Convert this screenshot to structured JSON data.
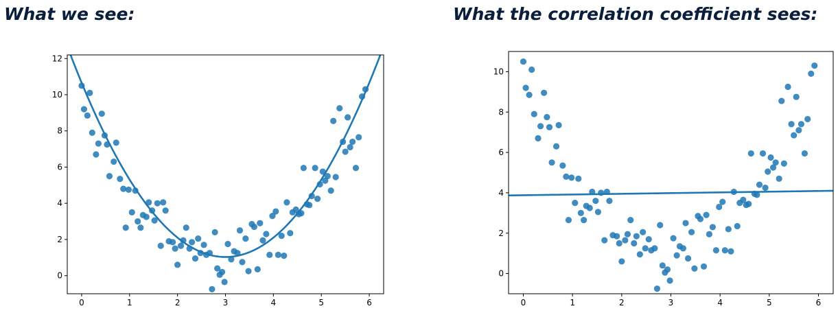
{
  "headings": {
    "left": "What we see:",
    "right": "What the correlation coefficient sees:"
  },
  "colors": {
    "series": "#1f77b4",
    "heading": "#0b1f3a"
  },
  "chart_data": [
    {
      "type": "scatter",
      "title": "",
      "xlabel": "",
      "ylabel": "",
      "xlim": [
        -0.3,
        6.3
      ],
      "ylim": [
        -1.0,
        12.2
      ],
      "xticks": [
        0,
        1,
        2,
        3,
        4,
        5,
        6
      ],
      "yticks": [
        0,
        2,
        4,
        6,
        8,
        10,
        12
      ],
      "grid": false,
      "fit": {
        "type": "quadratic",
        "coefficients": [
          1.07,
          0,
          1.03
        ],
        "vertex_x": 3.0
      },
      "points": [
        [
          0,
          10.5
        ],
        [
          0.05,
          9.2
        ],
        [
          0.12,
          8.85
        ],
        [
          0.17,
          10.1
        ],
        [
          0.22,
          7.9
        ],
        [
          0.3,
          6.7
        ],
        [
          0.35,
          7.3
        ],
        [
          0.42,
          8.95
        ],
        [
          0.48,
          7.75
        ],
        [
          0.53,
          7.25
        ],
        [
          0.58,
          5.5
        ],
        [
          0.67,
          6.3
        ],
        [
          0.72,
          7.35
        ],
        [
          0.8,
          5.35
        ],
        [
          0.87,
          4.8
        ],
        [
          0.92,
          2.65
        ],
        [
          0.98,
          4.75
        ],
        [
          1.05,
          3.5
        ],
        [
          1.12,
          4.7
        ],
        [
          1.17,
          3.0
        ],
        [
          1.23,
          2.65
        ],
        [
          1.28,
          3.35
        ],
        [
          1.35,
          3.25
        ],
        [
          1.4,
          4.05
        ],
        [
          1.47,
          3.6
        ],
        [
          1.52,
          3.05
        ],
        [
          1.58,
          4.0
        ],
        [
          1.65,
          1.65
        ],
        [
          1.7,
          4.05
        ],
        [
          1.75,
          3.6
        ],
        [
          1.82,
          1.9
        ],
        [
          1.9,
          1.85
        ],
        [
          1.95,
          1.5
        ],
        [
          2.0,
          0.6
        ],
        [
          2.07,
          1.65
        ],
        [
          2.12,
          1.95
        ],
        [
          2.18,
          2.65
        ],
        [
          2.25,
          1.5
        ],
        [
          2.3,
          1.85
        ],
        [
          2.37,
          0.95
        ],
        [
          2.43,
          2.05
        ],
        [
          2.48,
          1.25
        ],
        [
          2.55,
          1.7
        ],
        [
          2.6,
          1.15
        ],
        [
          2.67,
          1.25
        ],
        [
          2.72,
          -0.75
        ],
        [
          2.78,
          2.4
        ],
        [
          2.83,
          0.4
        ],
        [
          2.88,
          0.05
        ],
        [
          2.93,
          0.2
        ],
        [
          2.98,
          -0.35
        ],
        [
          3.05,
          1.75
        ],
        [
          3.12,
          0.9
        ],
        [
          3.18,
          1.35
        ],
        [
          3.25,
          1.25
        ],
        [
          3.3,
          2.5
        ],
        [
          3.35,
          0.75
        ],
        [
          3.42,
          2.05
        ],
        [
          3.48,
          0.25
        ],
        [
          3.55,
          2.85
        ],
        [
          3.6,
          2.7
        ],
        [
          3.67,
          0.35
        ],
        [
          3.72,
          2.9
        ],
        [
          3.78,
          1.95
        ],
        [
          3.85,
          2.3
        ],
        [
          3.92,
          1.15
        ],
        [
          3.98,
          3.3
        ],
        [
          4.05,
          3.55
        ],
        [
          4.1,
          1.15
        ],
        [
          4.17,
          2.2
        ],
        [
          4.22,
          1.1
        ],
        [
          4.28,
          4.05
        ],
        [
          4.35,
          2.35
        ],
        [
          4.4,
          3.5
        ],
        [
          4.47,
          3.65
        ],
        [
          4.53,
          3.4
        ],
        [
          4.58,
          3.45
        ],
        [
          4.63,
          5.95
        ],
        [
          4.7,
          3.95
        ],
        [
          4.75,
          3.9
        ],
        [
          4.8,
          4.4
        ],
        [
          4.87,
          5.95
        ],
        [
          4.92,
          4.25
        ],
        [
          4.97,
          5.05
        ],
        [
          5.03,
          5.75
        ],
        [
          5.08,
          5.25
        ],
        [
          5.13,
          5.5
        ],
        [
          5.2,
          4.7
        ],
        [
          5.25,
          8.55
        ],
        [
          5.3,
          5.45
        ],
        [
          5.38,
          9.25
        ],
        [
          5.45,
          7.4
        ],
        [
          5.5,
          6.85
        ],
        [
          5.55,
          8.75
        ],
        [
          5.6,
          7.1
        ],
        [
          5.65,
          7.4
        ],
        [
          5.72,
          5.95
        ],
        [
          5.78,
          7.65
        ],
        [
          5.85,
          9.9
        ],
        [
          5.92,
          10.3
        ]
      ]
    },
    {
      "type": "scatter",
      "title": "",
      "xlabel": "",
      "ylabel": "",
      "xlim": [
        -0.3,
        6.3
      ],
      "ylim": [
        -1.0,
        11.0
      ],
      "xticks": [
        0,
        1,
        2,
        3,
        4,
        5,
        6
      ],
      "yticks": [
        0,
        2,
        4,
        6,
        8,
        10
      ],
      "grid": false,
      "fit": {
        "type": "linear",
        "intercept": 3.88,
        "slope": 0.035
      },
      "points": [
        [
          0,
          10.5
        ],
        [
          0.05,
          9.2
        ],
        [
          0.12,
          8.85
        ],
        [
          0.17,
          10.1
        ],
        [
          0.22,
          7.9
        ],
        [
          0.3,
          6.7
        ],
        [
          0.35,
          7.3
        ],
        [
          0.42,
          8.95
        ],
        [
          0.48,
          7.75
        ],
        [
          0.53,
          7.25
        ],
        [
          0.58,
          5.5
        ],
        [
          0.67,
          6.3
        ],
        [
          0.72,
          7.35
        ],
        [
          0.8,
          5.35
        ],
        [
          0.87,
          4.8
        ],
        [
          0.92,
          2.65
        ],
        [
          0.98,
          4.75
        ],
        [
          1.05,
          3.5
        ],
        [
          1.12,
          4.7
        ],
        [
          1.17,
          3.0
        ],
        [
          1.23,
          2.65
        ],
        [
          1.28,
          3.35
        ],
        [
          1.35,
          3.25
        ],
        [
          1.4,
          4.05
        ],
        [
          1.47,
          3.6
        ],
        [
          1.52,
          3.05
        ],
        [
          1.58,
          4.0
        ],
        [
          1.65,
          1.65
        ],
        [
          1.7,
          4.05
        ],
        [
          1.75,
          3.6
        ],
        [
          1.82,
          1.9
        ],
        [
          1.9,
          1.85
        ],
        [
          1.95,
          1.5
        ],
        [
          2.0,
          0.6
        ],
        [
          2.07,
          1.65
        ],
        [
          2.12,
          1.95
        ],
        [
          2.18,
          2.65
        ],
        [
          2.25,
          1.5
        ],
        [
          2.3,
          1.85
        ],
        [
          2.37,
          0.95
        ],
        [
          2.43,
          2.05
        ],
        [
          2.48,
          1.25
        ],
        [
          2.55,
          1.7
        ],
        [
          2.6,
          1.15
        ],
        [
          2.67,
          1.25
        ],
        [
          2.72,
          -0.75
        ],
        [
          2.78,
          2.4
        ],
        [
          2.83,
          0.4
        ],
        [
          2.88,
          0.05
        ],
        [
          2.93,
          0.2
        ],
        [
          2.98,
          -0.35
        ],
        [
          3.05,
          1.75
        ],
        [
          3.12,
          0.9
        ],
        [
          3.18,
          1.35
        ],
        [
          3.25,
          1.25
        ],
        [
          3.3,
          2.5
        ],
        [
          3.35,
          0.75
        ],
        [
          3.42,
          2.05
        ],
        [
          3.48,
          0.25
        ],
        [
          3.55,
          2.85
        ],
        [
          3.6,
          2.7
        ],
        [
          3.67,
          0.35
        ],
        [
          3.72,
          2.9
        ],
        [
          3.78,
          1.95
        ],
        [
          3.85,
          2.3
        ],
        [
          3.92,
          1.15
        ],
        [
          3.98,
          3.3
        ],
        [
          4.05,
          3.55
        ],
        [
          4.1,
          1.15
        ],
        [
          4.17,
          2.2
        ],
        [
          4.22,
          1.1
        ],
        [
          4.28,
          4.05
        ],
        [
          4.35,
          2.35
        ],
        [
          4.4,
          3.5
        ],
        [
          4.47,
          3.65
        ],
        [
          4.53,
          3.4
        ],
        [
          4.58,
          3.45
        ],
        [
          4.63,
          5.95
        ],
        [
          4.7,
          3.95
        ],
        [
          4.75,
          3.9
        ],
        [
          4.8,
          4.4
        ],
        [
          4.87,
          5.95
        ],
        [
          4.92,
          4.25
        ],
        [
          4.97,
          5.05
        ],
        [
          5.03,
          5.75
        ],
        [
          5.08,
          5.25
        ],
        [
          5.13,
          5.5
        ],
        [
          5.2,
          4.7
        ],
        [
          5.25,
          8.55
        ],
        [
          5.3,
          5.45
        ],
        [
          5.38,
          9.25
        ],
        [
          5.45,
          7.4
        ],
        [
          5.5,
          6.85
        ],
        [
          5.55,
          8.75
        ],
        [
          5.6,
          7.1
        ],
        [
          5.65,
          7.4
        ],
        [
          5.72,
          5.95
        ],
        [
          5.78,
          7.65
        ],
        [
          5.85,
          9.9
        ],
        [
          5.92,
          10.3
        ]
      ]
    }
  ]
}
